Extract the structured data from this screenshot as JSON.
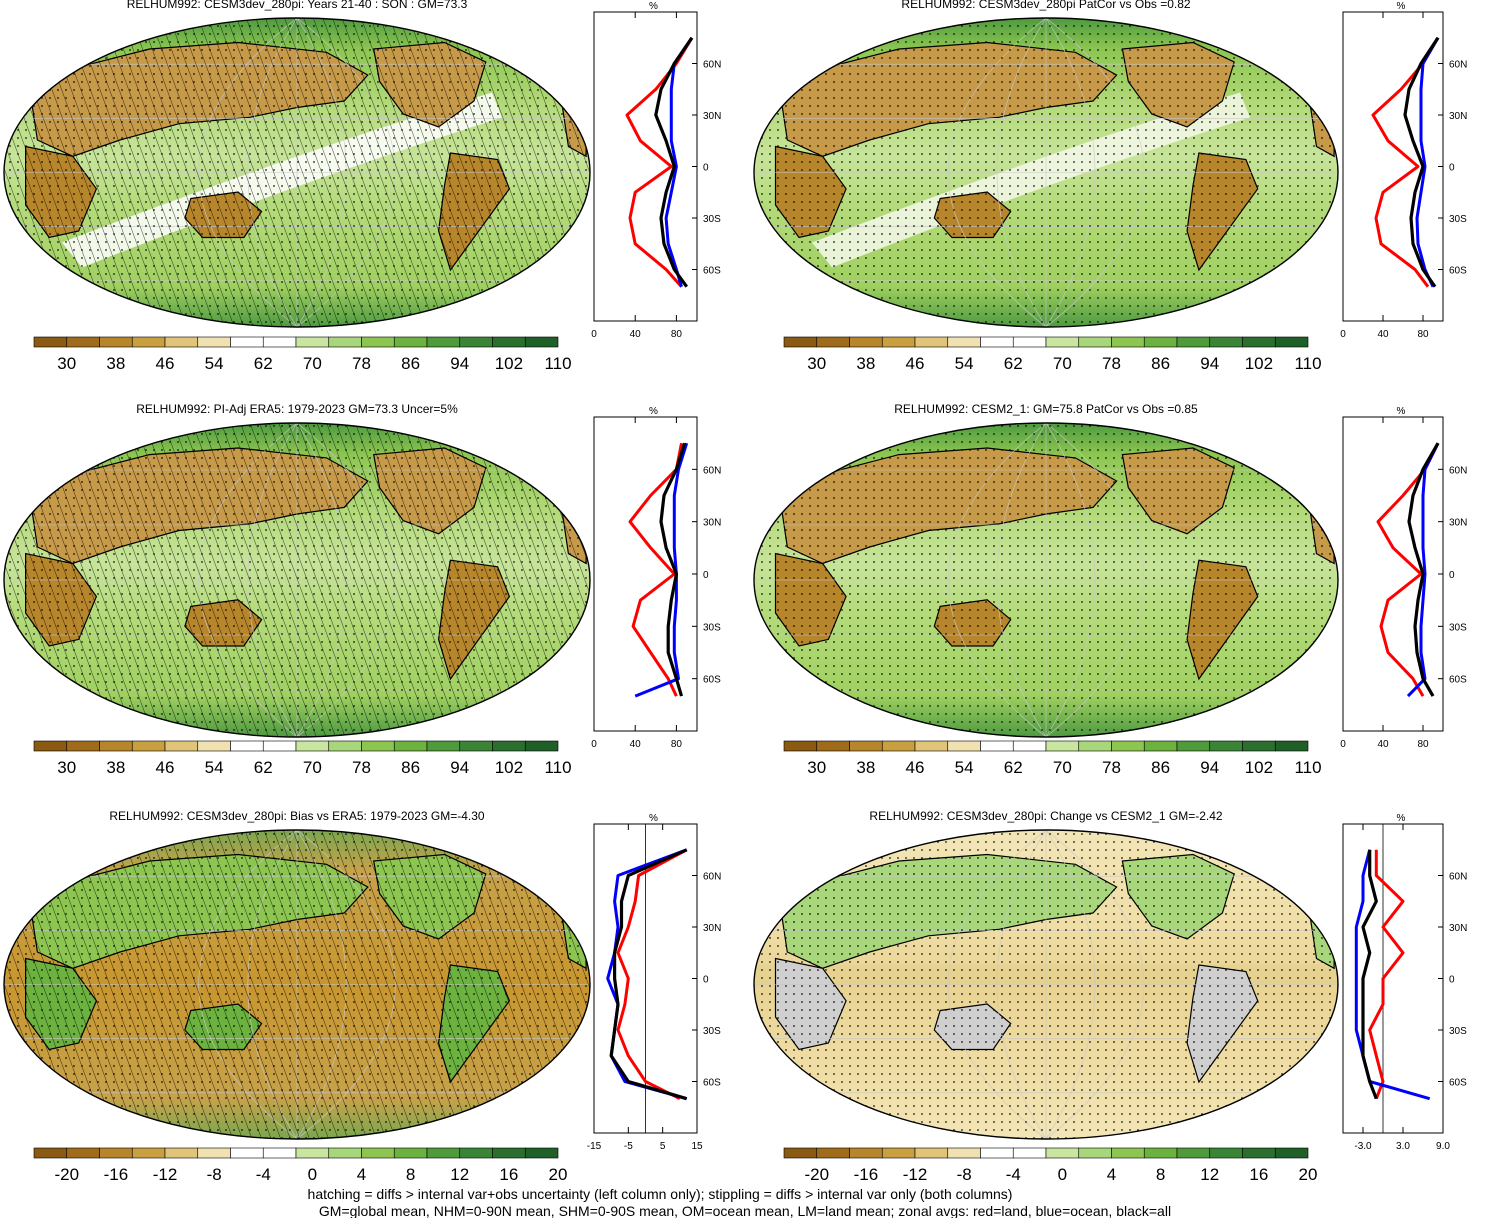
{
  "panels": [
    {
      "title": "RELHUM992: CESM3dev_280pi: Years 21-40 : SON : GM=73.3",
      "colorbar": [
        "30",
        "38",
        "46",
        "54",
        "62",
        "70",
        "78",
        "86",
        "94",
        "102",
        "110"
      ],
      "profile": {
        "unit": "%",
        "xticks": [
          "0",
          "40",
          "80"
        ],
        "xrange": [
          0,
          100
        ]
      }
    },
    {
      "title": "RELHUM992: CESM3dev_280pi PatCor vs Obs =0.82",
      "colorbar": [
        "30",
        "38",
        "46",
        "54",
        "62",
        "70",
        "78",
        "86",
        "94",
        "102",
        "110"
      ],
      "profile": {
        "unit": "%",
        "xticks": [
          "0",
          "40",
          "80"
        ],
        "xrange": [
          0,
          100
        ]
      }
    },
    {
      "title": "RELHUM992: PI-Adj ERA5: 1979-2023 GM=73.3 Uncer=5%",
      "colorbar": [
        "30",
        "38",
        "46",
        "54",
        "62",
        "70",
        "78",
        "86",
        "94",
        "102",
        "110"
      ],
      "profile": {
        "unit": "%",
        "xticks": [
          "0",
          "40",
          "80"
        ],
        "xrange": [
          0,
          100
        ]
      }
    },
    {
      "title": "RELHUM992: CESM2_1: GM=75.8 PatCor vs Obs =0.85",
      "colorbar": [
        "30",
        "38",
        "46",
        "54",
        "62",
        "70",
        "78",
        "86",
        "94",
        "102",
        "110"
      ],
      "profile": {
        "unit": "%",
        "xticks": [
          "0",
          "40",
          "80"
        ],
        "xrange": [
          0,
          100
        ]
      }
    },
    {
      "title": "RELHUM992: CESM3dev_280pi: Bias vs ERA5: 1979-2023  GM=-4.30",
      "colorbar": [
        "-20",
        "-16",
        "-12",
        "-8",
        "-4",
        "0",
        "4",
        "8",
        "12",
        "16",
        "20"
      ],
      "profile": {
        "unit": "%",
        "xticks": [
          "-15",
          "-5",
          "5",
          "15"
        ],
        "xrange": [
          -15,
          15
        ]
      }
    },
    {
      "title": "RELHUM992: CESM3dev_280pi: Change vs CESM2_1 GM=-2.42",
      "colorbar": [
        "-20",
        "-16",
        "-12",
        "-8",
        "-4",
        "0",
        "4",
        "8",
        "12",
        "16",
        "20"
      ],
      "profile": {
        "unit": "%",
        "xticks": [
          "-3.0",
          "3.0",
          "9.0"
        ],
        "xrange": [
          -6,
          9
        ]
      }
    }
  ],
  "lat_ticks": [
    "60N",
    "30N",
    "0",
    "30S",
    "60S"
  ],
  "footer": {
    "line1": "hatching = diffs > internal var+obs uncertainty (left column only); stippling = diffs > internal var only (both columns)",
    "line2": "GM=global mean, NHM=0-90N mean, SHM=0-90S mean, OM=ocean mean, LM=land mean; zonal avgs: red=land, blue=ocean, black=all"
  },
  "colors": {
    "land": "#ff0000",
    "ocean": "#0000ff",
    "all": "#000000"
  },
  "chart_data": [
    {
      "type": "line",
      "title": "RELHUM992: CESM3dev_280pi: Years 21-40 : SON : GM=73.3",
      "xlabel": "%",
      "xlim": [
        0,
        100
      ],
      "y": [
        75,
        60,
        45,
        30,
        15,
        0,
        -15,
        -30,
        -45,
        -60,
        -70
      ],
      "series": [
        {
          "name": "land",
          "x": [
            95,
            80,
            60,
            32,
            45,
            75,
            40,
            35,
            40,
            70,
            85
          ]
        },
        {
          "name": "ocean",
          "x": [
            95,
            78,
            75,
            75,
            75,
            80,
            75,
            70,
            72,
            80,
            85
          ]
        },
        {
          "name": "all",
          "x": [
            95,
            78,
            65,
            60,
            70,
            78,
            70,
            65,
            68,
            78,
            90
          ]
        }
      ]
    },
    {
      "type": "line",
      "title": "RELHUM992: CESM3dev_280pi PatCor vs Obs =0.82",
      "xlabel": "%",
      "xlim": [
        0,
        100
      ],
      "y": [
        75,
        60,
        45,
        30,
        15,
        0,
        -15,
        -30,
        -45,
        -60,
        -70
      ],
      "series": [
        {
          "name": "land",
          "x": [
            95,
            80,
            58,
            30,
            45,
            75,
            40,
            33,
            38,
            72,
            85
          ]
        },
        {
          "name": "ocean",
          "x": [
            95,
            80,
            78,
            78,
            78,
            82,
            78,
            74,
            75,
            82,
            90
          ]
        },
        {
          "name": "all",
          "x": [
            95,
            78,
            66,
            62,
            70,
            80,
            72,
            68,
            70,
            80,
            92
          ]
        }
      ]
    },
    {
      "type": "line",
      "title": "RELHUM992: PI-Adj ERA5: 1979-2023 GM=73.3 Uncer=5%",
      "xlabel": "%",
      "xlim": [
        0,
        100
      ],
      "y": [
        75,
        60,
        45,
        30,
        15,
        0,
        -15,
        -30,
        -45,
        -60,
        -70
      ],
      "series": [
        {
          "name": "land",
          "x": [
            85,
            80,
            55,
            35,
            55,
            78,
            45,
            38,
            55,
            72,
            80
          ]
        },
        {
          "name": "ocean",
          "x": [
            90,
            82,
            78,
            78,
            78,
            80,
            80,
            78,
            78,
            82,
            40
          ]
        },
        {
          "name": "all",
          "x": [
            88,
            80,
            68,
            65,
            70,
            80,
            75,
            72,
            72,
            80,
            85
          ]
        }
      ]
    },
    {
      "type": "line",
      "title": "RELHUM992: CESM2_1: GM=75.8 PatCor vs Obs =0.85",
      "xlabel": "%",
      "xlim": [
        0,
        100
      ],
      "y": [
        75,
        60,
        45,
        30,
        15,
        0,
        -15,
        -30,
        -45,
        -60,
        -70
      ],
      "series": [
        {
          "name": "land",
          "x": [
            95,
            82,
            60,
            35,
            50,
            78,
            45,
            38,
            45,
            70,
            80
          ]
        },
        {
          "name": "ocean",
          "x": [
            95,
            82,
            80,
            80,
            80,
            82,
            80,
            78,
            78,
            82,
            65
          ]
        },
        {
          "name": "all",
          "x": [
            95,
            80,
            70,
            66,
            72,
            80,
            75,
            72,
            74,
            80,
            90
          ]
        }
      ]
    },
    {
      "type": "line",
      "title": "RELHUM992: CESM3dev_280pi: Bias vs ERA5: 1979-2023  GM=-4.30",
      "xlabel": "%",
      "xlim": [
        -15,
        15
      ],
      "y": [
        75,
        60,
        45,
        30,
        15,
        0,
        -15,
        -30,
        -45,
        -60,
        -70
      ],
      "series": [
        {
          "name": "land",
          "x": [
            12,
            -2,
            -3,
            -5,
            -8,
            -5,
            -6,
            -8,
            -5,
            0,
            10
          ]
        },
        {
          "name": "ocean",
          "x": [
            12,
            -8,
            -9,
            -8,
            -9,
            -11,
            -8,
            -9,
            -10,
            -6,
            12
          ]
        },
        {
          "name": "all",
          "x": [
            12,
            -5,
            -7,
            -7,
            -9,
            -9,
            -8,
            -9,
            -10,
            -5,
            12
          ]
        }
      ]
    },
    {
      "type": "line",
      "title": "RELHUM992: CESM3dev_280pi: Change vs CESM2_1 GM=-2.42",
      "xlabel": "%",
      "xlim": [
        -6,
        9
      ],
      "y": [
        75,
        60,
        45,
        30,
        15,
        0,
        -15,
        -30,
        -45,
        -60,
        -70
      ],
      "series": [
        {
          "name": "land",
          "x": [
            -1,
            -1,
            3,
            0,
            3,
            0,
            0,
            -2,
            -1,
            0,
            -1
          ]
        },
        {
          "name": "ocean",
          "x": [
            -2,
            -3,
            -3,
            -4,
            -4,
            -4,
            -4,
            -4,
            -3,
            -2,
            7
          ]
        },
        {
          "name": "all",
          "x": [
            -2,
            -2,
            -1,
            -3,
            -2,
            -3,
            -3,
            -3,
            -3,
            -2,
            -1
          ]
        }
      ]
    }
  ]
}
